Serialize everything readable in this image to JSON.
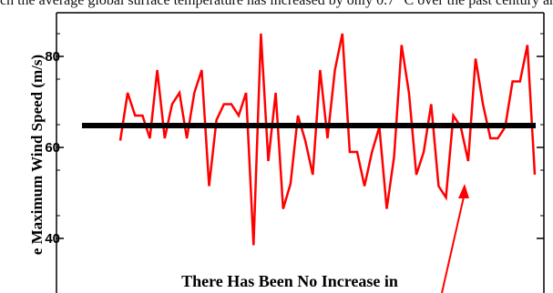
{
  "page": {
    "top_text": "ch the average global surface temperature has increased by only 0.7 °C over the past century and is projected by the IPCC"
  },
  "chart_data": {
    "type": "line",
    "ylabel": "e Maximum Wind Speed (m/s)",
    "ylim": [
      37,
      91
    ],
    "yticks": [
      40,
      60,
      80
    ],
    "annotation": "There Has Been No Increase in",
    "series": [
      {
        "name": "",
        "color": "#ff0000",
        "values": [
          61.5,
          72,
          67,
          67,
          62,
          77,
          62,
          69.5,
          72,
          62,
          72,
          77,
          51.5,
          66,
          69.5,
          69.5,
          67,
          72,
          38.5,
          85,
          57,
          72,
          46.5,
          52,
          67,
          61.5,
          54,
          77,
          62,
          77,
          85,
          59,
          59,
          51.5,
          59,
          64.5,
          46.5,
          58,
          82.5,
          72,
          54,
          59,
          69.5,
          51.5,
          49,
          67,
          64.5,
          57,
          79.5,
          69.5,
          62,
          62,
          64.5,
          74.5,
          74.5,
          82.5,
          54
        ]
      },
      {
        "name": "",
        "color": "#000000",
        "values": [
          64.8,
          64.8
        ]
      }
    ]
  }
}
